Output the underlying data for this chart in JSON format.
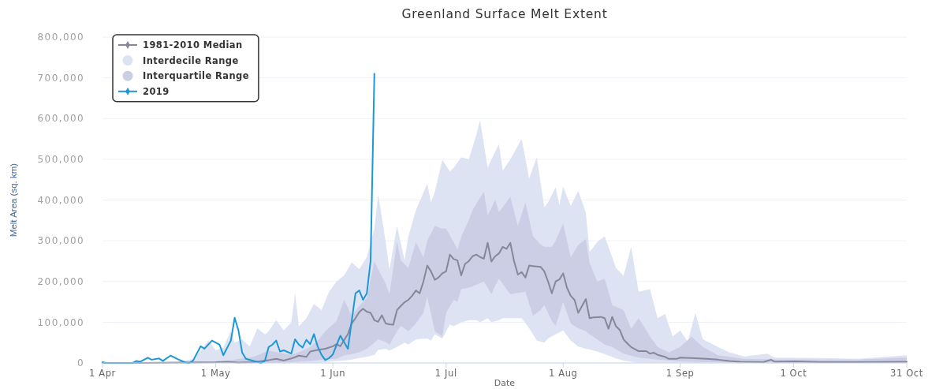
{
  "chart_data": {
    "type": "line",
    "title": "Greenland Surface Melt Extent",
    "xlabel": "Date",
    "ylabel": "Melt Area (sq. km)",
    "xlim": [
      "--04-01",
      "--10-31"
    ],
    "xticks": [
      {
        "value": "--04-01",
        "label": "1 Apr"
      },
      {
        "value": "--05-01",
        "label": "1 May"
      },
      {
        "value": "--06-01",
        "label": "1 Jun"
      },
      {
        "value": "--07-01",
        "label": "1 Jul"
      },
      {
        "value": "--08-01",
        "label": "1 Aug"
      },
      {
        "value": "--09-01",
        "label": "1 Sep"
      },
      {
        "value": "--10-01",
        "label": "1 Oct"
      },
      {
        "value": "--10-31",
        "label": "31 Oct"
      }
    ],
    "ylim": [
      0,
      800000
    ],
    "yticks": [
      0,
      {
        "value": 100000,
        "label": "100,000"
      },
      {
        "value": 200000,
        "label": "200,000"
      },
      {
        "value": 300000,
        "label": "300,000"
      },
      {
        "value": 400000,
        "label": "400,000"
      },
      {
        "value": 500000,
        "label": "500,000"
      },
      {
        "value": 600000,
        "label": "600,000"
      },
      {
        "value": 700000,
        "label": "700,000"
      },
      {
        "value": 800000,
        "label": "800,000"
      }
    ],
    "grid": "y",
    "legend": "top left",
    "series": [
      {
        "name": "1981-2010 Median",
        "type": "line",
        "color": "#86889a",
        "x": [
          "--04-01",
          "--04-11",
          "--04-21",
          "--05-01",
          "--05-04",
          "--05-07",
          "--05-11",
          "--05-15",
          "--05-17",
          "--05-19",
          "--05-21",
          "--05-23",
          "--05-25",
          "--05-26",
          "--05-28",
          "--05-30",
          "--06-01",
          "--06-02",
          "--06-03",
          "--06-05",
          "--06-06",
          "--06-07",
          "--06-08",
          "--06-09",
          "--06-10",
          "--06-11",
          "--06-12",
          "--06-13",
          "--06-14",
          "--06-15",
          "--06-16",
          "--06-17",
          "--06-18",
          "--06-19",
          "--06-20",
          "--06-21",
          "--06-22",
          "--06-23",
          "--06-24",
          "--06-25",
          "--06-26",
          "--06-27",
          "--06-28",
          "--06-29",
          "--06-30",
          "--07-01",
          "--07-02",
          "--07-03",
          "--07-04",
          "--07-05",
          "--07-06",
          "--07-07",
          "--07-08",
          "--07-09",
          "--07-10",
          "--07-11",
          "--07-12",
          "--07-13",
          "--07-14",
          "--07-15",
          "--07-16",
          "--07-17",
          "--07-18",
          "--07-19",
          "--07-20",
          "--07-21",
          "--07-22",
          "--07-23",
          "--07-24",
          "--07-25",
          "--07-26",
          "--07-27",
          "--07-28",
          "--07-29",
          "--07-30",
          "--07-31",
          "--08-01",
          "--08-02",
          "--08-03",
          "--08-04",
          "--08-05",
          "--08-06",
          "--08-07",
          "--08-08",
          "--08-09",
          "--08-11",
          "--08-12",
          "--08-13",
          "--08-14",
          "--08-15",
          "--08-16",
          "--08-17",
          "--08-18",
          "--08-19",
          "--08-21",
          "--08-23",
          "--08-24",
          "--08-25",
          "--08-26",
          "--08-28",
          "--08-29",
          "--08-31",
          "--09-01",
          "--09-04",
          "--09-08",
          "--09-11",
          "--09-14",
          "--09-17",
          "--09-23",
          "--09-25",
          "--09-26",
          "--10-01",
          "--10-08",
          "--10-18",
          "--10-31"
        ],
        "values": [
          0,
          0,
          1000,
          2000,
          3000,
          1000,
          2000,
          7000,
          10000,
          6000,
          11000,
          18000,
          15000,
          28000,
          32000,
          35000,
          41000,
          46000,
          41000,
          71000,
          97000,
          110000,
          125000,
          133000,
          126000,
          123000,
          105000,
          101000,
          117000,
          97000,
          95000,
          94000,
          130000,
          140000,
          149000,
          155000,
          165000,
          178000,
          171000,
          200000,
          239000,
          225000,
          204000,
          210000,
          220000,
          225000,
          266000,
          255000,
          252000,
          215000,
          243000,
          250000,
          262000,
          266000,
          260000,
          256000,
          295000,
          249000,
          262000,
          269000,
          285000,
          280000,
          295000,
          250000,
          217000,
          223000,
          210000,
          239000,
          238000,
          237000,
          236000,
          225000,
          200000,
          171000,
          200000,
          205000,
          220000,
          185000,
          165000,
          155000,
          123000,
          140000,
          157000,
          110000,
          112000,
          113000,
          110000,
          84000,
          113000,
          90000,
          81000,
          58000,
          48000,
          39000,
          29000,
          29000,
          23000,
          25000,
          20000,
          15000,
          10000,
          10000,
          13000,
          12000,
          10000,
          8000,
          5000,
          3000,
          2000,
          8000,
          3000,
          4000,
          2000,
          2000,
          3000
        ]
      },
      {
        "name": "Interdecile Range",
        "type": "area",
        "color": "#dde3f3",
        "x": [
          "--04-01",
          "--04-16",
          "--04-21",
          "--04-25",
          "--04-27",
          "--04-29",
          "--05-01",
          "--05-03",
          "--05-05",
          "--05-06",
          "--05-08",
          "--05-10",
          "--05-12",
          "--05-14",
          "--05-15",
          "--05-17",
          "--05-19",
          "--05-21",
          "--05-22",
          "--05-23",
          "--05-25",
          "--05-27",
          "--05-29",
          "--05-31",
          "--06-02",
          "--06-04",
          "--06-06",
          "--06-08",
          "--06-10",
          "--06-12",
          "--06-13",
          "--06-15",
          "--06-16",
          "--06-18",
          "--06-20",
          "--06-21",
          "--06-23",
          "--06-26",
          "--06-27",
          "--06-28",
          "--06-30",
          "--07-02",
          "--07-03",
          "--07-05",
          "--07-07",
          "--07-09",
          "--07-10",
          "--07-12",
          "--07-13",
          "--07-15",
          "--07-16",
          "--07-18",
          "--07-21",
          "--07-23",
          "--07-25",
          "--07-27",
          "--07-28",
          "--07-30",
          "--07-31",
          "--08-01",
          "--08-03",
          "--08-05",
          "--08-07",
          "--08-08",
          "--08-10",
          "--08-12",
          "--08-15",
          "--08-17",
          "--08-19",
          "--08-21",
          "--08-24",
          "--08-26",
          "--08-28",
          "--08-30",
          "--09-01",
          "--09-03",
          "--09-05",
          "--09-07",
          "--09-11",
          "--09-14",
          "--09-18",
          "--09-24",
          "--09-26",
          "--10-08",
          "--10-18",
          "--10-31"
        ],
        "values": [
          null,
          null,
          null,
          null,
          null,
          null,
          null,
          null,
          null,
          null,
          null,
          null,
          null,
          null,
          null,
          null,
          null,
          null,
          null,
          null,
          null,
          null,
          null,
          null,
          null,
          null,
          null,
          null,
          null,
          null,
          null,
          null,
          null,
          null,
          null,
          null,
          null,
          null,
          null,
          null,
          null,
          null,
          null,
          null,
          null,
          null,
          null,
          null,
          null,
          null,
          null,
          null,
          null,
          null,
          null,
          null,
          null,
          null,
          null,
          null,
          null,
          null,
          null,
          null,
          null,
          null,
          null,
          null,
          null,
          null,
          null,
          null,
          null,
          null,
          null,
          null,
          null,
          null,
          null,
          null,
          null,
          null,
          null,
          null,
          null,
          null
        ],
        "lower": [
          0,
          0,
          0,
          0,
          0,
          0,
          0,
          0,
          0,
          0,
          0,
          0,
          0,
          0,
          0,
          0,
          0,
          0,
          0,
          0,
          0,
          0,
          1000,
          3000,
          5000,
          6000,
          8000,
          12000,
          15000,
          20000,
          32000,
          35000,
          30000,
          39000,
          50000,
          45000,
          58000,
          60000,
          55000,
          70000,
          60000,
          95000,
          90000,
          100000,
          105000,
          105000,
          100000,
          110000,
          100000,
          105000,
          110000,
          110000,
          110000,
          85000,
          55000,
          50000,
          60000,
          70000,
          75000,
          80000,
          55000,
          40000,
          35000,
          33000,
          28000,
          22000,
          11000,
          6000,
          3000,
          1000,
          0,
          0,
          0,
          0,
          0,
          0,
          0,
          0,
          0,
          0,
          0,
          0,
          0,
          0,
          0,
          0
        ],
        "upper": [
          0,
          0,
          2000,
          10000,
          30000,
          55000,
          31000,
          38000,
          78000,
          50000,
          58000,
          40000,
          85000,
          70000,
          78000,
          105000,
          80000,
          100000,
          171000,
          90000,
          110000,
          145000,
          130000,
          175000,
          200000,
          215000,
          247000,
          230000,
          260000,
          330000,
          414000,
          297000,
          230000,
          336000,
          252000,
          311000,
          375000,
          440000,
          394000,
          420000,
          499000,
          470000,
          479000,
          505000,
          500000,
          560000,
          596000,
          479000,
          500000,
          537000,
          472000,
          500000,
          550000,
          453000,
          505000,
          382000,
          394000,
          431000,
          388000,
          433000,
          385000,
          423000,
          369000,
          272000,
          297000,
          311000,
          233000,
          214000,
          285000,
          175000,
          181000,
          110000,
          120000,
          65000,
          80000,
          52000,
          123000,
          58000,
          39000,
          26000,
          16000,
          23000,
          13000,
          12000,
          10000,
          19000
        ]
      },
      {
        "name": "Interquartile Range",
        "type": "area",
        "color": "#cbcee4",
        "x": [
          "--04-01",
          "--04-26",
          "--05-01",
          "--05-06",
          "--05-11",
          "--05-15",
          "--05-18",
          "--05-21",
          "--05-24",
          "--05-26",
          "--05-28",
          "--05-30",
          "--06-02",
          "--06-04",
          "--06-06",
          "--06-08",
          "--06-10",
          "--06-12",
          "--06-13",
          "--06-15",
          "--06-16",
          "--06-18",
          "--06-19",
          "--06-21",
          "--06-23",
          "--06-25",
          "--06-26",
          "--06-28",
          "--06-30",
          "--07-01",
          "--07-03",
          "--07-04",
          "--07-05",
          "--07-07",
          "--07-08",
          "--07-11",
          "--07-12",
          "--07-13",
          "--07-14",
          "--07-15",
          "--07-18",
          "--07-20",
          "--07-22",
          "--07-24",
          "--07-26",
          "--07-27",
          "--07-29",
          "--07-30",
          "--08-01",
          "--08-03",
          "--08-05",
          "--08-07",
          "--08-08",
          "--08-10",
          "--08-12",
          "--08-14",
          "--08-17",
          "--08-19",
          "--08-21",
          "--08-24",
          "--08-26",
          "--08-29",
          "--09-01",
          "--09-04",
          "--09-07",
          "--09-11",
          "--09-18",
          "--09-28",
          "--10-18",
          "--10-31"
        ],
        "values": [
          null,
          null,
          null,
          null,
          null,
          null,
          null,
          null,
          null,
          null,
          null,
          null,
          null,
          null,
          null,
          null,
          null,
          null,
          null,
          null,
          null,
          null,
          null,
          null,
          null,
          null,
          null,
          null,
          null,
          null,
          null,
          null,
          null,
          null,
          null,
          null,
          null,
          null,
          null,
          null,
          null,
          null,
          null,
          null,
          null,
          null,
          null,
          null,
          null,
          null,
          null,
          null,
          null,
          null,
          null,
          null,
          null,
          null,
          null,
          null,
          null,
          null,
          null,
          null,
          null,
          null,
          null,
          null,
          null,
          null
        ],
        "lower": [
          0,
          0,
          0,
          0,
          0,
          0,
          0,
          2000,
          4000,
          5000,
          7000,
          9000,
          10000,
          19000,
          22000,
          26000,
          35000,
          50000,
          58000,
          52000,
          45000,
          78000,
          91000,
          78000,
          97000,
          123000,
          162000,
          78000,
          65000,
          123000,
          155000,
          150000,
          181000,
          185000,
          188000,
          200000,
          185000,
          169000,
          190000,
          207000,
          169000,
          172000,
          175000,
          116000,
          130000,
          142000,
          103000,
          91000,
          149000,
          97000,
          85000,
          78000,
          70000,
          58000,
          45000,
          39000,
          23000,
          18000,
          13000,
          10000,
          8000,
          6000,
          4000,
          3000,
          2000,
          2000,
          1000,
          1000,
          1000,
          1000
        ],
        "upper": [
          0,
          0,
          3000,
          8000,
          15000,
          30000,
          25000,
          20000,
          30000,
          39000,
          55000,
          78000,
          103000,
          155000,
          116000,
          140000,
          160000,
          250000,
          230000,
          194000,
          169000,
          297000,
          252000,
          233000,
          297000,
          259000,
          300000,
          336000,
          330000,
          330000,
          297000,
          278000,
          310000,
          350000,
          375000,
          421000,
          362000,
          380000,
          401000,
          370000,
          408000,
          336000,
          394000,
          311000,
          291000,
          285000,
          285000,
          300000,
          343000,
          259000,
          290000,
          304000,
          246000,
          200000,
          207000,
          142000,
          130000,
          84000,
          110000,
          65000,
          39000,
          26000,
          39000,
          65000,
          39000,
          19000,
          10000,
          8000,
          8000,
          13000
        ]
      },
      {
        "name": "2019",
        "type": "line",
        "color": "#1c98d4",
        "x": [
          "--04-01",
          "--04-02",
          "--04-09",
          "--04-10",
          "--04-11",
          "--04-13",
          "--04-14",
          "--04-16",
          "--04-17",
          "--04-19",
          "--04-21",
          "--04-23",
          "--04-24",
          "--04-25",
          "--04-27",
          "--04-28",
          "--04-30",
          "--05-02",
          "--05-03",
          "--05-05",
          "--05-06",
          "--05-07",
          "--05-08",
          "--05-09",
          "--05-11",
          "--05-13",
          "--05-14",
          "--05-15",
          "--05-16",
          "--05-17",
          "--05-18",
          "--05-19",
          "--05-21",
          "--05-22",
          "--05-23",
          "--05-24",
          "--05-25",
          "--05-26",
          "--05-27",
          "--05-28",
          "--05-29",
          "--05-30",
          "--05-31",
          "--06-01",
          "--06-03",
          "--06-05",
          "--06-07",
          "--06-08",
          "--06-09",
          "--06-10",
          "--06-11",
          "--06-12"
        ],
        "values": [
          2000,
          0,
          0,
          5000,
          3000,
          13000,
          8000,
          11000,
          5000,
          18000,
          9000,
          1000,
          0,
          6000,
          41000,
          35000,
          55000,
          45000,
          19000,
          55000,
          111000,
          80000,
          25000,
          10000,
          5000,
          0,
          5000,
          39000,
          45000,
          55000,
          28000,
          31000,
          23000,
          58000,
          45000,
          38000,
          57000,
          46000,
          71000,
          40000,
          20000,
          7000,
          12000,
          21000,
          67000,
          35000,
          171000,
          178000,
          155000,
          171000,
          250000,
          710000
        ]
      }
    ]
  }
}
